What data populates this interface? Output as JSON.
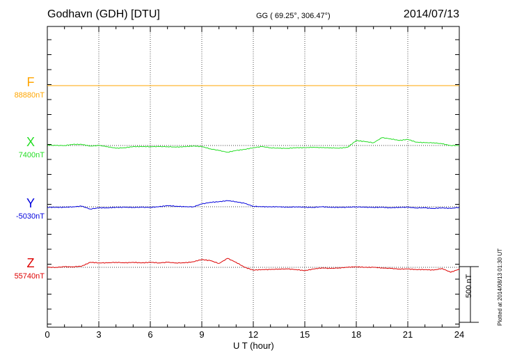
{
  "header": {
    "station": "Godhavn (GDH)  [DTU]",
    "coords": "GG ( 69.25°, 306.47°)",
    "date": "2014/07/13"
  },
  "footer": {
    "plotted": "Plotted at 2014/08/13 01:30 UT"
  },
  "chart_data": {
    "type": "line",
    "xlabel": "U T (hour)",
    "xlim": [
      0,
      24
    ],
    "x_ticks": [
      "0",
      "3",
      "6",
      "9",
      "12",
      "15",
      "18",
      "21",
      "24"
    ],
    "scale_bar": {
      "label": "500 nT",
      "value_nT": 500
    },
    "series": [
      {
        "name": "F",
        "baseline_label": "88880nT",
        "color": "#FFA500",
        "x": [
          0,
          24
        ],
        "y": [
          0,
          0
        ]
      },
      {
        "name": "X",
        "baseline_label": "7400nT",
        "color": "#22DD22",
        "x": [
          0,
          0.5,
          1,
          1.5,
          2,
          2.5,
          3,
          3.5,
          4,
          4.5,
          5,
          5.5,
          6,
          6.5,
          7,
          7.5,
          8,
          8.5,
          9,
          9.5,
          10,
          10.5,
          11,
          11.5,
          12,
          12.5,
          13,
          13.5,
          14,
          14.5,
          15,
          15.5,
          16,
          16.5,
          17,
          17.5,
          18,
          18.5,
          19,
          19.5,
          20,
          20.5,
          21,
          21.5,
          22,
          22.5,
          23,
          23.5,
          24
        ],
        "y": [
          5,
          0,
          0,
          10,
          10,
          -5,
          0,
          -10,
          -25,
          -20,
          -10,
          -10,
          -10,
          -10,
          -10,
          -15,
          -10,
          -5,
          -10,
          -30,
          -45,
          -60,
          -45,
          -35,
          -20,
          -10,
          -20,
          -25,
          -25,
          -20,
          -20,
          -15,
          -20,
          -20,
          -25,
          -15,
          45,
          35,
          25,
          70,
          60,
          45,
          55,
          30,
          25,
          25,
          15,
          0,
          0
        ]
      },
      {
        "name": "Y",
        "baseline_label": "-5030nT",
        "color": "#0000DD",
        "x": [
          0,
          0.5,
          1,
          1.5,
          2,
          2.5,
          3,
          3.5,
          4,
          4.5,
          5,
          5.5,
          6,
          6.5,
          7,
          7.5,
          8,
          8.5,
          9,
          9.5,
          10,
          10.5,
          11,
          11.5,
          12,
          12.5,
          13,
          13.5,
          14,
          14.5,
          15,
          15.5,
          16,
          16.5,
          17,
          17.5,
          18,
          18.5,
          19,
          19.5,
          20,
          20.5,
          21,
          21.5,
          22,
          22.5,
          23,
          23.5,
          24
        ],
        "y": [
          -5,
          -5,
          -5,
          0,
          5,
          -20,
          -10,
          -10,
          -5,
          -5,
          -5,
          -5,
          -5,
          0,
          10,
          5,
          0,
          0,
          25,
          40,
          45,
          55,
          45,
          30,
          5,
          0,
          0,
          0,
          -5,
          0,
          -5,
          -5,
          0,
          -5,
          -5,
          -5,
          0,
          -5,
          -5,
          -5,
          -10,
          -5,
          -5,
          -10,
          -10,
          -15,
          -10,
          -15,
          -5
        ]
      },
      {
        "name": "Z",
        "baseline_label": "55740nT",
        "color": "#DD0000",
        "x": [
          0,
          0.5,
          1,
          1.5,
          2,
          2.5,
          3,
          3.5,
          4,
          4.5,
          5,
          5.5,
          6,
          6.5,
          7,
          7.5,
          8,
          8.5,
          9,
          9.5,
          10,
          10.5,
          11,
          11.5,
          12,
          12.5,
          13,
          13.5,
          14,
          14.5,
          15,
          15.5,
          16,
          16.5,
          17,
          17.5,
          18,
          18.5,
          19,
          19.5,
          20,
          20.5,
          21,
          21.5,
          22,
          22.5,
          23,
          23.5,
          24
        ],
        "y": [
          0,
          0,
          5,
          5,
          10,
          45,
          40,
          40,
          45,
          40,
          45,
          40,
          45,
          40,
          45,
          40,
          40,
          50,
          70,
          60,
          35,
          80,
          45,
          0,
          -25,
          -20,
          -20,
          -15,
          -15,
          -20,
          -30,
          -15,
          -5,
          -10,
          -5,
          0,
          5,
          0,
          0,
          -5,
          -10,
          -15,
          -15,
          -20,
          -20,
          -25,
          -10,
          -45,
          -15
        ]
      }
    ]
  }
}
